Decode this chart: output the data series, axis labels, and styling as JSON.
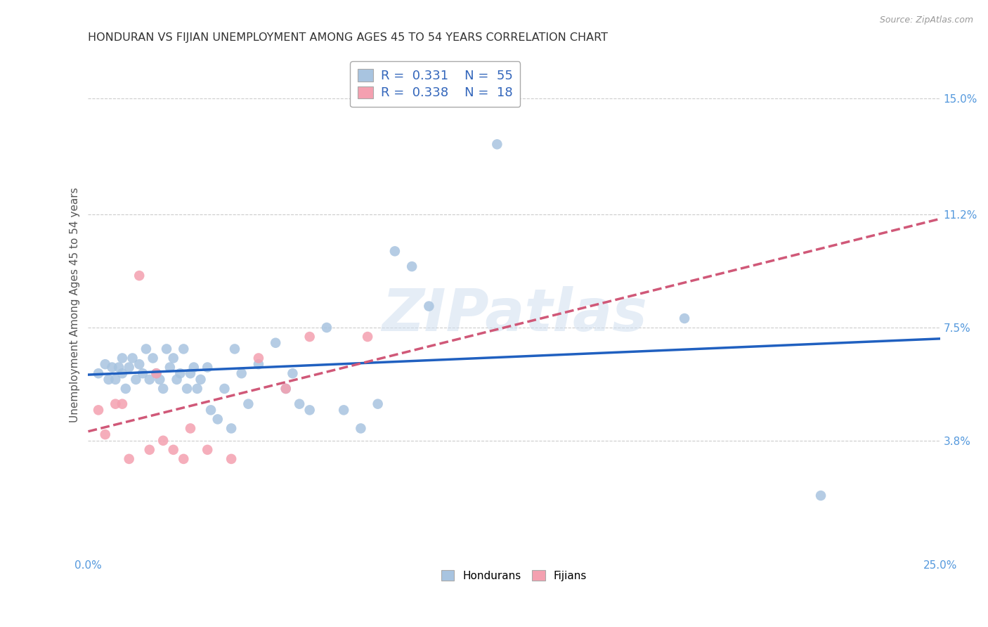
{
  "title": "HONDURAN VS FIJIAN UNEMPLOYMENT AMONG AGES 45 TO 54 YEARS CORRELATION CHART",
  "source": "Source: ZipAtlas.com",
  "ylabel": "Unemployment Among Ages 45 to 54 years",
  "xlim": [
    0.0,
    0.25
  ],
  "ylim": [
    0.0,
    0.165
  ],
  "xticks": [
    0.0,
    0.05,
    0.1,
    0.15,
    0.2,
    0.25
  ],
  "xticklabels": [
    "0.0%",
    "",
    "",
    "",
    "",
    "25.0%"
  ],
  "ytick_positions": [
    0.038,
    0.075,
    0.112,
    0.15
  ],
  "ytick_labels": [
    "3.8%",
    "7.5%",
    "11.2%",
    "15.0%"
  ],
  "honduran_color": "#a8c4e0",
  "fijian_color": "#f4a0b0",
  "honduran_line_color": "#2060c0",
  "fijian_line_color": "#d05878",
  "background_color": "#ffffff",
  "grid_color": "#cccccc",
  "honduran_R": 0.331,
  "honduran_N": 55,
  "fijian_R": 0.338,
  "fijian_N": 18,
  "watermark": "ZIPatlas",
  "honduran_x": [
    0.003,
    0.005,
    0.006,
    0.007,
    0.008,
    0.009,
    0.01,
    0.01,
    0.011,
    0.012,
    0.013,
    0.014,
    0.015,
    0.016,
    0.017,
    0.018,
    0.019,
    0.02,
    0.021,
    0.022,
    0.023,
    0.024,
    0.025,
    0.026,
    0.027,
    0.028,
    0.029,
    0.03,
    0.031,
    0.032,
    0.033,
    0.035,
    0.036,
    0.038,
    0.04,
    0.042,
    0.043,
    0.045,
    0.047,
    0.05,
    0.055,
    0.058,
    0.06,
    0.062,
    0.065,
    0.07,
    0.075,
    0.08,
    0.085,
    0.09,
    0.095,
    0.1,
    0.12,
    0.175,
    0.215
  ],
  "honduran_y": [
    0.06,
    0.063,
    0.058,
    0.062,
    0.058,
    0.062,
    0.06,
    0.065,
    0.055,
    0.062,
    0.065,
    0.058,
    0.063,
    0.06,
    0.068,
    0.058,
    0.065,
    0.06,
    0.058,
    0.055,
    0.068,
    0.062,
    0.065,
    0.058,
    0.06,
    0.068,
    0.055,
    0.06,
    0.062,
    0.055,
    0.058,
    0.062,
    0.048,
    0.045,
    0.055,
    0.042,
    0.068,
    0.06,
    0.05,
    0.063,
    0.07,
    0.055,
    0.06,
    0.05,
    0.048,
    0.075,
    0.048,
    0.042,
    0.05,
    0.1,
    0.095,
    0.082,
    0.135,
    0.078,
    0.02
  ],
  "fijian_x": [
    0.003,
    0.005,
    0.008,
    0.01,
    0.012,
    0.015,
    0.018,
    0.02,
    0.022,
    0.025,
    0.028,
    0.03,
    0.035,
    0.042,
    0.05,
    0.058,
    0.065,
    0.082
  ],
  "fijian_y": [
    0.048,
    0.04,
    0.05,
    0.05,
    0.032,
    0.092,
    0.035,
    0.06,
    0.038,
    0.035,
    0.032,
    0.042,
    0.035,
    0.032,
    0.065,
    0.055,
    0.072,
    0.072
  ],
  "marker_size": 110,
  "title_fontsize": 11.5,
  "label_fontsize": 11,
  "tick_fontsize": 11,
  "legend_fontsize": 13
}
